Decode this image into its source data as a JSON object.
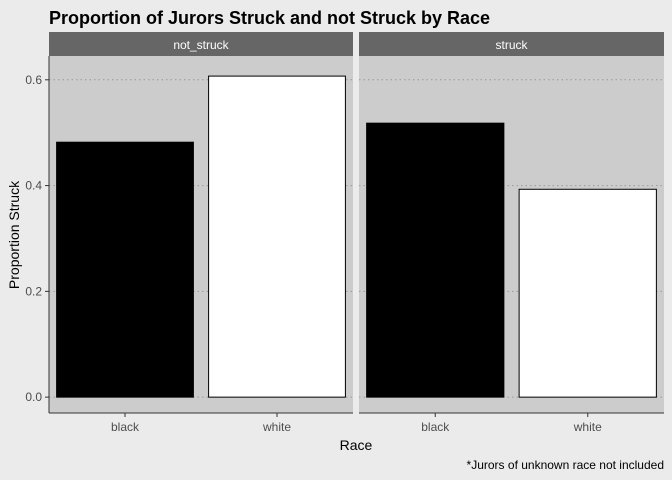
{
  "chart_data": {
    "type": "bar",
    "title": "Proportion of Jurors Struck and not Struck by Race",
    "xlabel": "Race",
    "ylabel": "Proportion Struck",
    "caption": "*Jurors of unknown race not included",
    "categories": [
      "black",
      "white"
    ],
    "ylim": [
      -0.03,
      0.645
    ],
    "yticks": [
      0.0,
      0.2,
      0.4,
      0.6
    ],
    "ytick_labels": [
      "0.0",
      "0.2",
      "0.4",
      "0.6"
    ],
    "grid": true,
    "facets": [
      {
        "label": "not_struck",
        "values": [
          0.482,
          0.607
        ]
      },
      {
        "label": "struck",
        "values": [
          0.518,
          0.393
        ]
      }
    ],
    "colors": {
      "black": "#000000",
      "white": "#ffffff",
      "panel": "#cccccc",
      "strip": "#666666",
      "background": "#ebebeb"
    }
  }
}
